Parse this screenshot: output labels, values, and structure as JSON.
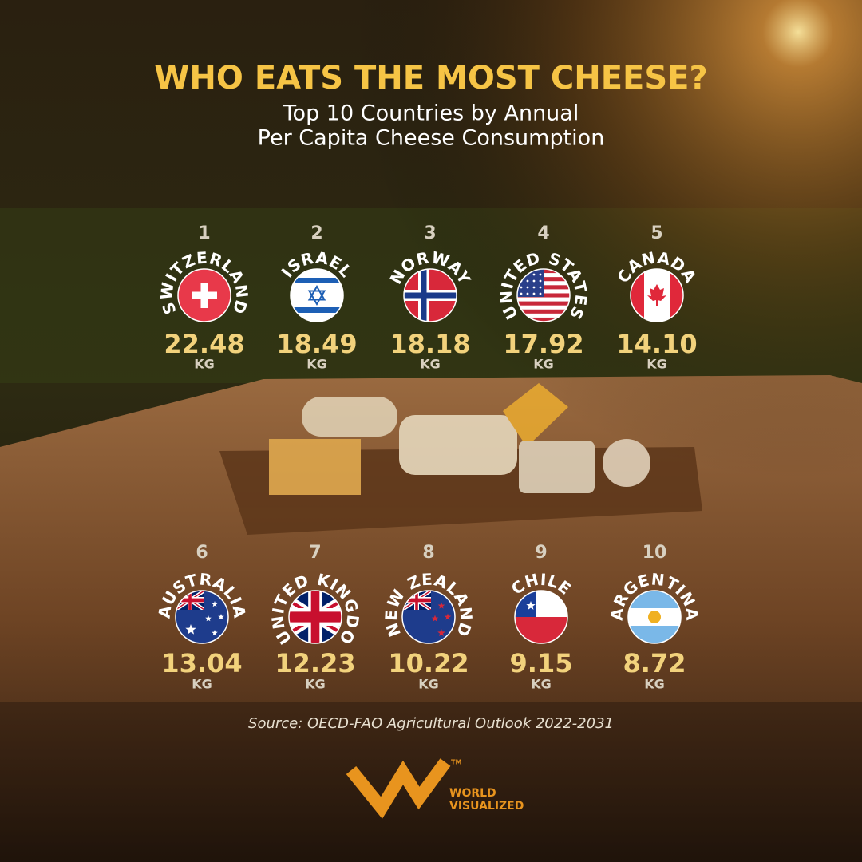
{
  "header": {
    "title": "WHO EATS THE MOST CHEESE?",
    "subtitle": [
      "Top 10 Countries by Annual",
      "Per Capita Cheese Consumption"
    ]
  },
  "countries": [
    {
      "rank": "1",
      "name": "SWITZERLAND",
      "value": "22.48",
      "unit": "KG"
    },
    {
      "rank": "2",
      "name": "ISRAEL",
      "value": "18.49",
      "unit": "KG"
    },
    {
      "rank": "3",
      "name": "NORWAY",
      "value": "18.18",
      "unit": "KG"
    },
    {
      "rank": "4",
      "name": "UNITED STATES",
      "value": "17.92",
      "unit": "KG"
    },
    {
      "rank": "5",
      "name": "CANADA",
      "value": "14.10",
      "unit": "KG"
    },
    {
      "rank": "6",
      "name": "AUSTRALIA",
      "value": "13.04",
      "unit": "KG"
    },
    {
      "rank": "7",
      "name": "UNITED KINGDO",
      "value": "12.23",
      "unit": "KG"
    },
    {
      "rank": "8",
      "name": "NEW ZEALAND",
      "value": "10.22",
      "unit": "KG"
    },
    {
      "rank": "9",
      "name": "CHILE",
      "value": "9.15",
      "unit": "KG"
    },
    {
      "rank": "10",
      "name": "ARGENTINA",
      "value": "8.72",
      "unit": "KG"
    }
  ],
  "source": "Source: OECD-FAO Agricultural Outlook 2022-2031",
  "logo": {
    "trademark": "TM",
    "lines": [
      "WORLD",
      "VISUALIZED"
    ]
  }
}
